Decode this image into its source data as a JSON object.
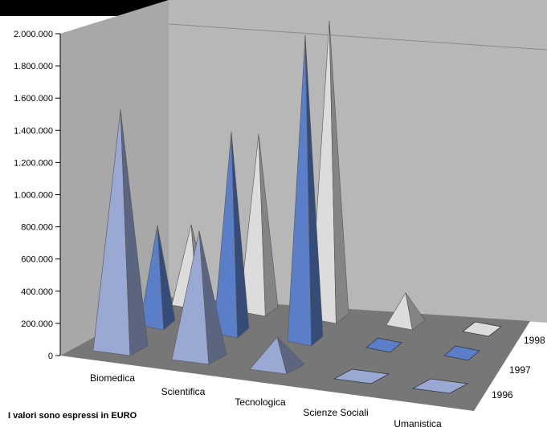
{
  "chart_data": {
    "type": "bar",
    "style": "3d-pyramid",
    "categories": [
      "Biomedica",
      "Scientifica",
      "Tecnologica",
      "Scienze Sociali",
      "Umanistica"
    ],
    "series": [
      {
        "name": "1996",
        "values": [
          1500000,
          800000,
          200000,
          0,
          0
        ]
      },
      {
        "name": "1997",
        "values": [
          620000,
          1250000,
          1900000,
          0,
          0
        ]
      },
      {
        "name": "1998",
        "values": [
          500000,
          1100000,
          1850000,
          200000,
          0
        ]
      }
    ],
    "ylim": [
      0,
      2000000
    ],
    "yticks": [
      "0",
      "200.000",
      "400.000",
      "600.000",
      "800.000",
      "1.000.000",
      "1.200.000",
      "1.400.000",
      "1.600.000",
      "1.800.000",
      "2.000.000"
    ],
    "grid": true,
    "colors": {
      "1996": "#9aa8d4",
      "1997": "#5a7ec8",
      "1998": "#dcdcdc",
      "floor": "#7a7a7a",
      "back_wall": "#bdbdbd",
      "side_wall": "#a9a9a9",
      "top_band": "#000000"
    }
  },
  "note": "I valori sono espressi in EURO"
}
